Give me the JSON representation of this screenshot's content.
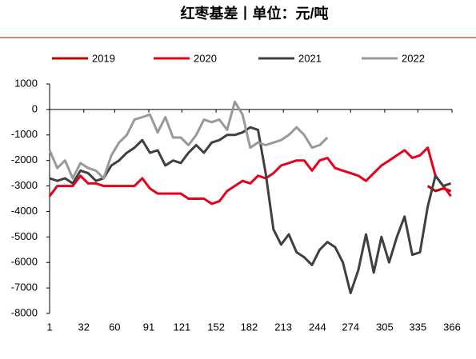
{
  "chart_data": {
    "type": "line",
    "title": "红枣基差丨单位：元/吨",
    "x": [
      1,
      8,
      15,
      22,
      29,
      36,
      43,
      50,
      57,
      64,
      71,
      78,
      85,
      92,
      99,
      106,
      113,
      120,
      127,
      134,
      141,
      148,
      155,
      162,
      169,
      176,
      183,
      190,
      197,
      204,
      211,
      218,
      225,
      232,
      239,
      246,
      253,
      260,
      267,
      274,
      281,
      288,
      295,
      302,
      309,
      316,
      323,
      330,
      337,
      344,
      351,
      358,
      365
    ],
    "series": [
      {
        "name": "2019",
        "color": "#c00000",
        "values": [
          null,
          null,
          null,
          null,
          null,
          null,
          null,
          null,
          null,
          null,
          null,
          null,
          null,
          null,
          null,
          null,
          null,
          null,
          null,
          null,
          null,
          null,
          null,
          null,
          null,
          null,
          null,
          null,
          null,
          null,
          null,
          null,
          null,
          null,
          null,
          null,
          null,
          null,
          null,
          null,
          null,
          null,
          null,
          null,
          null,
          null,
          null,
          null,
          null,
          -3000,
          -3200,
          -3100,
          -3200
        ]
      },
      {
        "name": "2020",
        "color": "#e8001c",
        "values": [
          -3400,
          -3000,
          -3000,
          -3000,
          -2600,
          -2900,
          -2900,
          -3000,
          -3000,
          -3000,
          -3000,
          -3000,
          -2700,
          -3100,
          -3300,
          -3300,
          -3300,
          -3300,
          -3500,
          -3500,
          -3500,
          -3700,
          -3600,
          -3200,
          -3000,
          -2800,
          -2900,
          -2600,
          -2700,
          -2500,
          -2200,
          -2100,
          -2000,
          -2000,
          -2400,
          -2000,
          -1900,
          -2300,
          -2400,
          -2500,
          -2600,
          -2800,
          -2500,
          -2200,
          -2000,
          -1800,
          -1600,
          -1900,
          -1800,
          -1500,
          -2600,
          -3000,
          -3400
        ]
      },
      {
        "name": "2021",
        "color": "#404040",
        "values": [
          -2700,
          -2800,
          -2700,
          -2900,
          -2400,
          -2500,
          -2800,
          -2700,
          -2200,
          -2000,
          -1700,
          -1500,
          -1200,
          -1700,
          -1600,
          -2200,
          -2000,
          -2100,
          -1700,
          -1400,
          -1700,
          -1300,
          -1200,
          -1000,
          -1000,
          -900,
          -700,
          -800,
          -2500,
          -4700,
          -5300,
          -4900,
          -5600,
          -5800,
          -6100,
          -5500,
          -5200,
          -5400,
          -6000,
          -7200,
          -6300,
          -4900,
          -6400,
          -5000,
          -6000,
          -5000,
          -4200,
          -5700,
          -5600,
          -3800,
          -2600,
          -3000,
          -2900
        ]
      },
      {
        "name": "2022",
        "color": "#999999",
        "values": [
          -1600,
          -2300,
          -2000,
          -2700,
          -2100,
          -2300,
          -2400,
          -2700,
          -1800,
          -1300,
          -1000,
          -400,
          -300,
          -200,
          -900,
          -300,
          -1100,
          -1100,
          -1400,
          -1000,
          -400,
          -500,
          -400,
          -800,
          300,
          -200,
          -1500,
          -1300,
          -1400,
          -1300,
          -1200,
          -1000,
          -700,
          -1000,
          -1500,
          -1400,
          -1100,
          null,
          null,
          null,
          null,
          null,
          null,
          null,
          null,
          null,
          null,
          null,
          null,
          null,
          null,
          null,
          null
        ]
      }
    ],
    "xlim": [
      1,
      366
    ],
    "xticks": [
      1,
      32,
      60,
      91,
      121,
      152,
      182,
      213,
      244,
      274,
      305,
      335,
      366
    ],
    "ylim": [
      -8000,
      1000
    ],
    "yticks": [
      1000,
      0,
      -1000,
      -2000,
      -3000,
      -4000,
      -5000,
      -6000,
      -7000,
      -8000
    ],
    "grid": false
  }
}
